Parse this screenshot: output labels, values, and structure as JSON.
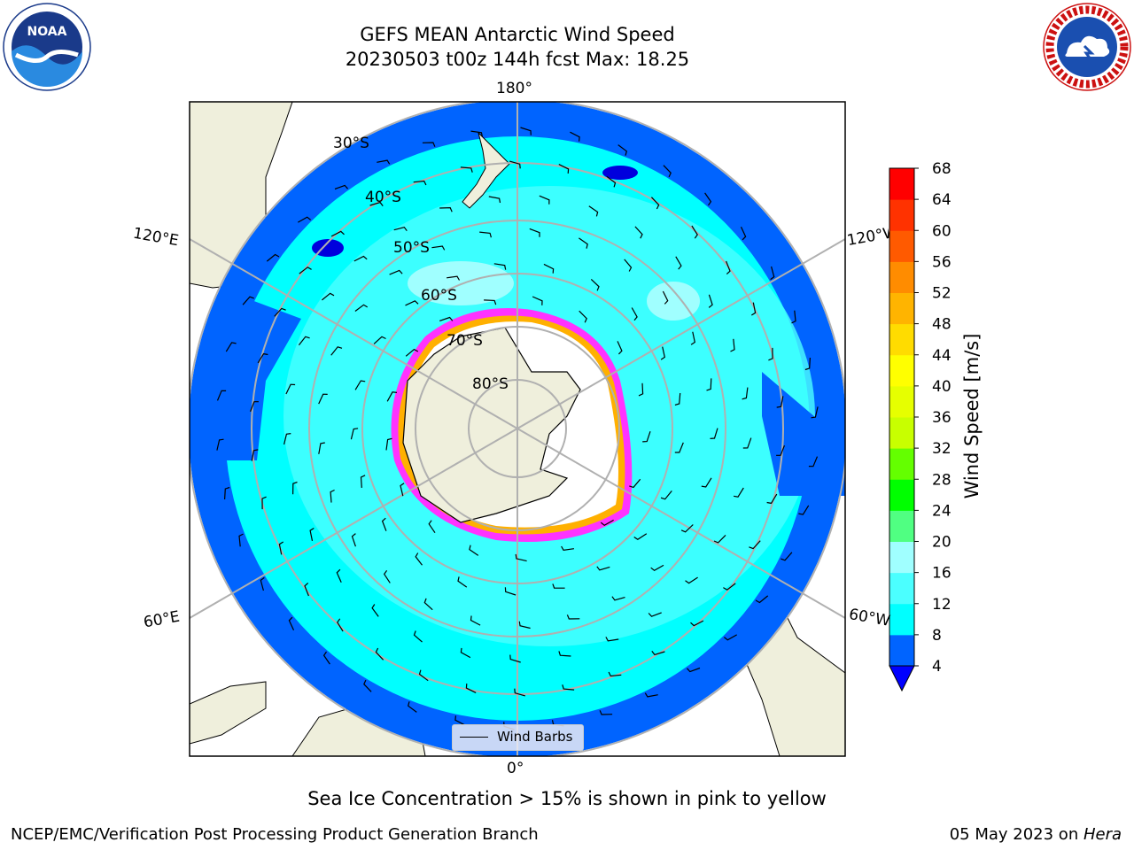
{
  "title": {
    "line1": "GEFS MEAN Antarctic Wind Speed",
    "line2": "20230503 t00z 144h fcst   Max: 18.25"
  },
  "logos": {
    "left": "noaa-logo",
    "right": "nws-logo",
    "noaa_text": "NOAA",
    "nws_text": "NATIONAL WEATHER SERVICE"
  },
  "map": {
    "projection": "south-polar-stereographic",
    "lat_labels": [
      "30°S",
      "40°S",
      "50°S",
      "60°S",
      "70°S",
      "80°S"
    ],
    "lon_labels": {
      "top": "180°",
      "bottom": "0°",
      "upper_left": "120°E",
      "upper_right": "120°W",
      "lower_left": "60°E",
      "lower_right": "60°W"
    },
    "land_color": "#efefdc",
    "ice_colors": [
      "#ff33ff",
      "#ffb000",
      "#ffff66"
    ],
    "legend_label": "Wind Barbs"
  },
  "colorbar": {
    "label": "Wind Speed [m/s]",
    "ticks": [
      "4",
      "8",
      "12",
      "16",
      "20",
      "24",
      "28",
      "32",
      "36",
      "40",
      "44",
      "48",
      "52",
      "56",
      "60",
      "64",
      "68"
    ],
    "colors": [
      "#0064ff",
      "#00ffff",
      "#4bffff",
      "#a0ffff",
      "#50ff82",
      "#00ff00",
      "#64ff00",
      "#c8ff00",
      "#e6ff00",
      "#ffff00",
      "#ffdc00",
      "#ffb400",
      "#ff8c00",
      "#ff5a00",
      "#ff3200",
      "#ff0000"
    ],
    "under_color": "#0000ff"
  },
  "caption": "Sea Ice Concentration > 15% is shown in pink to yellow",
  "footer": {
    "left": "NCEP/EMC/Verification Post Processing Product Generation Branch",
    "date": "05 May 2023 on ",
    "host": "Hera"
  }
}
